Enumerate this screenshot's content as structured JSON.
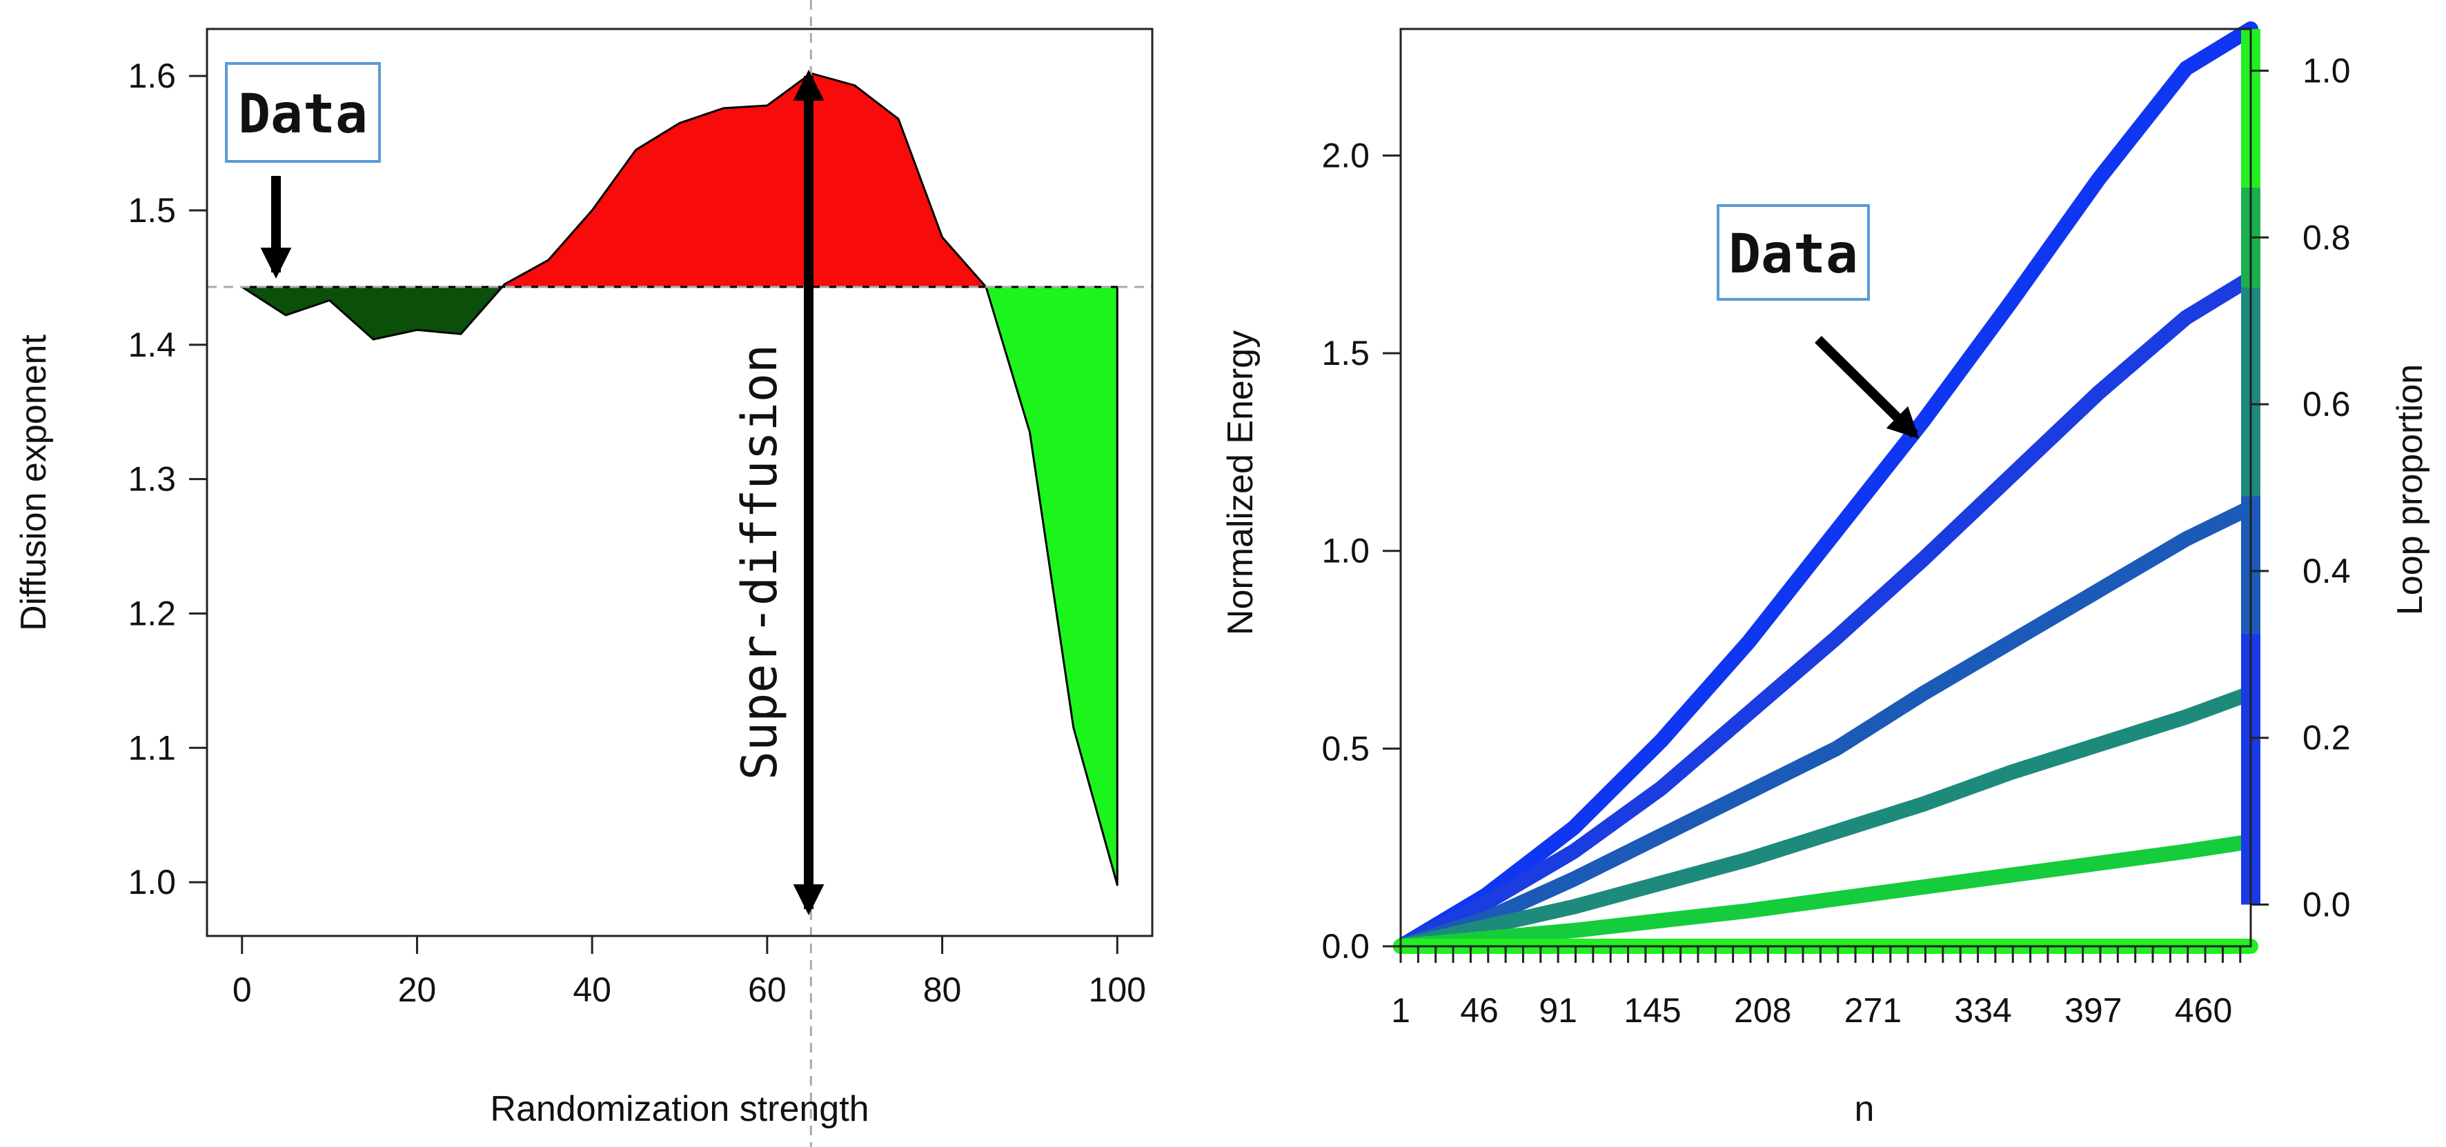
{
  "colors": {
    "below_baseline": "#0b4f0b",
    "above_baseline": "#f70b0b",
    "drop_area": "#1bf51b",
    "callout_border": "#5b9bd5",
    "arrow": "#000000",
    "ref_line": "#aaaaaa",
    "ticks": "#222222"
  },
  "chart_data": [
    {
      "type": "area",
      "title": "",
      "xlabel": "Randomization strength",
      "ylabel": "Diffusion exponent",
      "xlim": [
        -4,
        104
      ],
      "ylim": [
        0.96,
        1.635
      ],
      "xticks": [
        0,
        20,
        40,
        60,
        80,
        100
      ],
      "yticks": [
        1.0,
        1.1,
        1.2,
        1.3,
        1.4,
        1.5,
        1.6
      ],
      "xtick_labels": [
        "0",
        "20",
        "40",
        "60",
        "80",
        "100"
      ],
      "ytick_labels": [
        "1.0",
        "1.1",
        "1.2",
        "1.3",
        "1.4",
        "1.5",
        "1.6"
      ],
      "baseline": 1.443,
      "ref_x": 65,
      "grid": false,
      "x": [
        0,
        5,
        10,
        15,
        20,
        25,
        30,
        35,
        40,
        45,
        50,
        55,
        60,
        65,
        70,
        75,
        80,
        85,
        90,
        95,
        100
      ],
      "y": [
        1.443,
        1.422,
        1.433,
        1.404,
        1.411,
        1.408,
        1.445,
        1.463,
        1.5,
        1.545,
        1.565,
        1.576,
        1.578,
        1.602,
        1.593,
        1.568,
        1.48,
        1.443,
        1.335,
        1.115,
        0.998
      ],
      "regions": [
        {
          "x_range": [
            0,
            30
          ],
          "fill": "below_baseline"
        },
        {
          "x_range": [
            30,
            85
          ],
          "fill": "above_baseline"
        },
        {
          "x_range": [
            85,
            100
          ],
          "fill": "drop_area"
        }
      ],
      "annotations": {
        "data_label": "Data",
        "arrow_label": "Super-diffusion"
      }
    },
    {
      "type": "line",
      "title": "",
      "xlabel": "n",
      "ylabel": "Normalized Energy",
      "y2label": "Loop proportion",
      "xlim": [
        1,
        487
      ],
      "ylim": [
        0,
        2.32
      ],
      "y2lim": [
        -0.05,
        1.05
      ],
      "xtick_labels": [
        "1",
        "46",
        "91",
        "145",
        "208",
        "271",
        "334",
        "397",
        "460"
      ],
      "xtick_label_values": [
        1,
        46,
        91,
        145,
        208,
        271,
        334,
        397,
        460
      ],
      "yticks": [
        0.0,
        0.5,
        1.0,
        1.5,
        2.0
      ],
      "ytick_labels": [
        "0.0",
        "0.5",
        "1.0",
        "1.5",
        "2.0"
      ],
      "y2ticks": [
        0.0,
        0.2,
        0.4,
        0.6,
        0.8,
        1.0
      ],
      "y2tick_labels": [
        "0.0",
        "0.2",
        "0.4",
        "0.6",
        "0.8",
        "1.0"
      ],
      "grid": false,
      "series": [
        {
          "color": "#0f36f0",
          "x": [
            1,
            50,
            100,
            150,
            200,
            250,
            300,
            350,
            400,
            450,
            487
          ],
          "y": [
            0.0,
            0.13,
            0.3,
            0.52,
            0.77,
            1.05,
            1.33,
            1.63,
            1.94,
            2.22,
            2.32
          ]
        },
        {
          "color": "#1a3ce0",
          "x": [
            1,
            50,
            100,
            150,
            200,
            250,
            300,
            350,
            400,
            450,
            487
          ],
          "y": [
            0.0,
            0.11,
            0.24,
            0.4,
            0.59,
            0.78,
            0.98,
            1.19,
            1.4,
            1.59,
            1.69
          ]
        },
        {
          "color": "#1c5ab8",
          "x": [
            1,
            50,
            100,
            150,
            200,
            250,
            300,
            350,
            400,
            450,
            487
          ],
          "y": [
            0.0,
            0.07,
            0.17,
            0.28,
            0.39,
            0.5,
            0.64,
            0.77,
            0.9,
            1.03,
            1.11
          ]
        },
        {
          "color": "#1e8a7c",
          "x": [
            1,
            50,
            100,
            150,
            200,
            250,
            300,
            350,
            400,
            450,
            487
          ],
          "y": [
            0.0,
            0.05,
            0.1,
            0.16,
            0.22,
            0.29,
            0.36,
            0.44,
            0.51,
            0.58,
            0.64
          ]
        },
        {
          "color": "#15cc3c",
          "x": [
            1,
            50,
            100,
            150,
            200,
            250,
            300,
            350,
            400,
            450,
            487
          ],
          "y": [
            0.0,
            0.02,
            0.04,
            0.065,
            0.09,
            0.12,
            0.15,
            0.18,
            0.21,
            0.24,
            0.265
          ]
        },
        {
          "color": "#22ee22",
          "x": [
            1,
            487
          ],
          "y": [
            0.0,
            0.0
          ]
        }
      ],
      "colorbar": [
        {
          "from": 0.0,
          "to": 0.325,
          "color": "#1a3ae6"
        },
        {
          "from": 0.325,
          "to": 0.49,
          "color": "#1c5ab8"
        },
        {
          "from": 0.49,
          "to": 0.74,
          "color": "#1e8a7c"
        },
        {
          "from": 0.74,
          "to": 0.86,
          "color": "#1ab04c"
        },
        {
          "from": 0.86,
          "to": 1.05,
          "color": "#22ee22"
        }
      ],
      "annotations": {
        "data_label": "Data"
      }
    }
  ]
}
